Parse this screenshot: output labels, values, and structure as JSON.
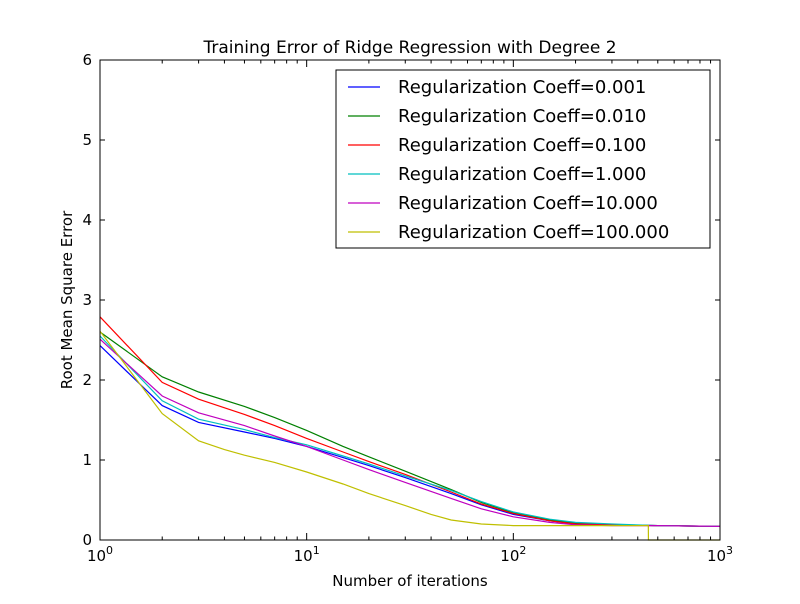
{
  "chart_data": {
    "type": "line",
    "title": "Training Error of Ridge Regression with Degree 2",
    "xlabel": "Number of iterations",
    "ylabel": "Root Mean Square Error",
    "xscale": "log",
    "xlim": [
      1,
      1000
    ],
    "ylim": [
      0,
      6
    ],
    "x_tick_labels": [
      {
        "value": 1,
        "base": "10",
        "exp": "0"
      },
      {
        "value": 10,
        "base": "10",
        "exp": "1"
      },
      {
        "value": 100,
        "base": "10",
        "exp": "2"
      },
      {
        "value": 1000,
        "base": "10",
        "exp": "3"
      }
    ],
    "y_tick_labels": [
      "0",
      "1",
      "2",
      "3",
      "4",
      "5",
      "6"
    ],
    "grid": false,
    "legend_position": "top-right",
    "series": [
      {
        "name": "Regularization Coeff=0.001",
        "color": "#0000ff",
        "points": [
          [
            1,
            2.43
          ],
          [
            2,
            1.68
          ],
          [
            3,
            1.47
          ],
          [
            5,
            1.35
          ],
          [
            7,
            1.27
          ],
          [
            10,
            1.17
          ],
          [
            15,
            1.03
          ],
          [
            20,
            0.93
          ],
          [
            30,
            0.78
          ],
          [
            50,
            0.58
          ],
          [
            70,
            0.44
          ],
          [
            100,
            0.32
          ],
          [
            150,
            0.24
          ],
          [
            200,
            0.2
          ],
          [
            300,
            0.19
          ],
          [
            500,
            0.18
          ],
          [
            1000,
            0.17
          ]
        ]
      },
      {
        "name": "Regularization Coeff=0.010",
        "color": "#008000",
        "points": [
          [
            1,
            2.6
          ],
          [
            2,
            2.04
          ],
          [
            3,
            1.85
          ],
          [
            5,
            1.67
          ],
          [
            7,
            1.53
          ],
          [
            10,
            1.37
          ],
          [
            15,
            1.17
          ],
          [
            20,
            1.04
          ],
          [
            30,
            0.86
          ],
          [
            50,
            0.63
          ],
          [
            70,
            0.47
          ],
          [
            100,
            0.34
          ],
          [
            150,
            0.25
          ],
          [
            200,
            0.21
          ],
          [
            300,
            0.19
          ],
          [
            500,
            0.18
          ],
          [
            1000,
            0.17
          ]
        ]
      },
      {
        "name": "Regularization Coeff=0.100",
        "color": "#ff0000",
        "points": [
          [
            1,
            2.79
          ],
          [
            2,
            1.97
          ],
          [
            3,
            1.76
          ],
          [
            5,
            1.57
          ],
          [
            7,
            1.43
          ],
          [
            10,
            1.27
          ],
          [
            15,
            1.1
          ],
          [
            20,
            0.98
          ],
          [
            30,
            0.82
          ],
          [
            50,
            0.6
          ],
          [
            70,
            0.45
          ],
          [
            100,
            0.33
          ],
          [
            150,
            0.24
          ],
          [
            200,
            0.2
          ],
          [
            300,
            0.19
          ],
          [
            500,
            0.18
          ],
          [
            1000,
            0.17
          ]
        ]
      },
      {
        "name": "Regularization Coeff=1.000",
        "color": "#00bfbf",
        "points": [
          [
            1,
            2.55
          ],
          [
            2,
            1.74
          ],
          [
            3,
            1.51
          ],
          [
            5,
            1.38
          ],
          [
            7,
            1.28
          ],
          [
            10,
            1.19
          ],
          [
            15,
            1.05
          ],
          [
            20,
            0.95
          ],
          [
            30,
            0.8
          ],
          [
            50,
            0.62
          ],
          [
            70,
            0.48
          ],
          [
            100,
            0.35
          ],
          [
            150,
            0.26
          ],
          [
            200,
            0.22
          ],
          [
            300,
            0.2
          ],
          [
            500,
            0.18
          ],
          [
            1000,
            0.17
          ]
        ]
      },
      {
        "name": "Regularization Coeff=10.000",
        "color": "#bf00bf",
        "points": [
          [
            1,
            2.51
          ],
          [
            2,
            1.8
          ],
          [
            3,
            1.59
          ],
          [
            5,
            1.43
          ],
          [
            7,
            1.3
          ],
          [
            10,
            1.17
          ],
          [
            15,
            1.0
          ],
          [
            20,
            0.88
          ],
          [
            30,
            0.72
          ],
          [
            50,
            0.52
          ],
          [
            70,
            0.39
          ],
          [
            100,
            0.29
          ],
          [
            150,
            0.22
          ],
          [
            200,
            0.19
          ],
          [
            300,
            0.18
          ],
          [
            500,
            0.18
          ],
          [
            1000,
            0.17
          ]
        ]
      },
      {
        "name": "Regularization Coeff=100.000",
        "color": "#bfbf00",
        "points": [
          [
            1,
            2.61
          ],
          [
            2,
            1.58
          ],
          [
            3,
            1.24
          ],
          [
            4,
            1.13
          ],
          [
            5,
            1.06
          ],
          [
            7,
            0.97
          ],
          [
            10,
            0.85
          ],
          [
            15,
            0.7
          ],
          [
            20,
            0.58
          ],
          [
            30,
            0.43
          ],
          [
            40,
            0.32
          ],
          [
            50,
            0.25
          ],
          [
            70,
            0.2
          ],
          [
            100,
            0.18
          ],
          [
            200,
            0.18
          ],
          [
            300,
            0.18
          ],
          [
            450,
            0.18
          ],
          [
            450.5,
            0.0
          ],
          [
            1000,
            0.0
          ]
        ]
      }
    ]
  }
}
